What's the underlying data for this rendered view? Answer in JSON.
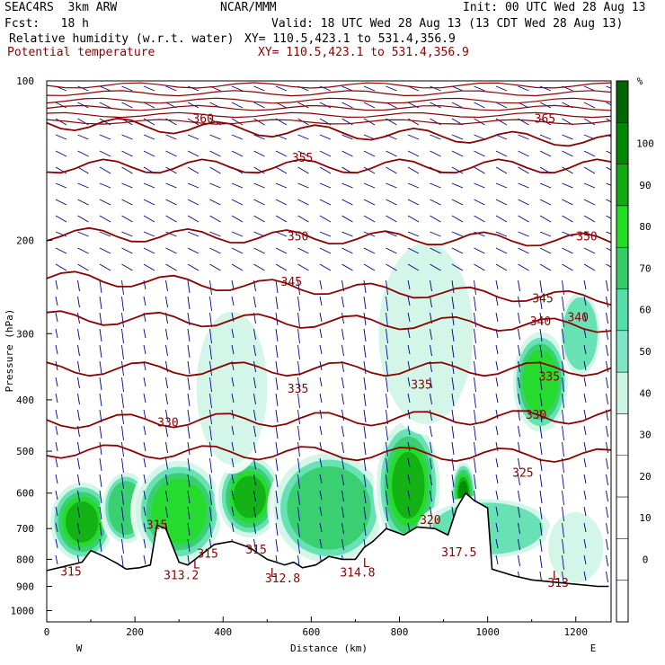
{
  "header": {
    "model": "SEAC4RS  3km ARW",
    "org": "NCAR/MMM",
    "init": "Init: 00 UTC Wed 28 Aug 13",
    "fcst": "Fcst:   18 h",
    "valid": "Valid: 18 UTC Wed 28 Aug 13 (13 CDT Wed 28 Aug 13)",
    "field1": "Relative humidity (w.r.t. water)",
    "field1_xy": "XY= 110.5,423.1 to 531.4,356.9",
    "field2": "Potential temperature",
    "field2_xy": "XY= 110.5,423.1 to 531.4,356.9"
  },
  "colors": {
    "theta": "#8b0000",
    "wind": "#00008b",
    "terrain": "#000000",
    "rh_scale": [
      "#ffffff",
      "#ffffff",
      "#ffffff",
      "#ffffff",
      "#ffffff",
      "#ccf5e4",
      "#7fe6c5",
      "#55ddaa",
      "#33cc66",
      "#22dd22",
      "#11aa11",
      "#008800",
      "#006600"
    ]
  },
  "chart_data": {
    "type": "heatmap",
    "title": "",
    "xlabel": "Distance (km)",
    "ylabel": "Pressure (hPa)",
    "xlim": [
      0,
      1280
    ],
    "ylim": [
      1050,
      100
    ],
    "y_scale": "log",
    "x_ticks": [
      "0",
      "200",
      "400",
      "600",
      "800",
      "1000",
      "1200"
    ],
    "y_ticks": [
      "100",
      "200",
      "300",
      "400",
      "500",
      "600",
      "700",
      "800",
      "900",
      "1000"
    ],
    "x_end_labels": {
      "left": "W",
      "right": "E"
    },
    "colorbar": {
      "unit": "%",
      "ticks": [
        "100",
        "90",
        "80",
        "70",
        "60",
        "50",
        "40",
        "30",
        "20",
        "10",
        "0"
      ],
      "range": [
        -10,
        110
      ]
    },
    "theta_contours": [
      {
        "label": "360",
        "p_left": 120,
        "p_right": 130
      },
      {
        "label": "355",
        "p_left": 145,
        "p_right": 145
      },
      {
        "label": "350",
        "p_left": 195,
        "p_right": 200
      },
      {
        "label": "345",
        "p_left": 235,
        "p_right": 258
      },
      {
        "label": "340",
        "p_left": 280,
        "p_right": 290
      },
      {
        "label": "335",
        "p_left": 350,
        "p_right": 350
      },
      {
        "label": "330",
        "p_left": 440,
        "p_right": 430
      },
      {
        "label": "325",
        "p_left": 500,
        "p_right": 510
      }
    ],
    "theta_labels": [
      {
        "text": "360",
        "x": 355,
        "p": 118
      },
      {
        "text": "365",
        "x": 1130,
        "p": 118
      },
      {
        "text": "355",
        "x": 580,
        "p": 140
      },
      {
        "text": "350",
        "x": 570,
        "p": 197
      },
      {
        "text": "350",
        "x": 1225,
        "p": 197
      },
      {
        "text": "345",
        "x": 555,
        "p": 240
      },
      {
        "text": "345",
        "x": 1125,
        "p": 258
      },
      {
        "text": "340",
        "x": 1120,
        "p": 285
      },
      {
        "text": "340",
        "x": 1205,
        "p": 280
      },
      {
        "text": "335",
        "x": 570,
        "p": 382
      },
      {
        "text": "335",
        "x": 850,
        "p": 375
      },
      {
        "text": "335",
        "x": 1140,
        "p": 362
      },
      {
        "text": "330",
        "x": 275,
        "p": 442
      },
      {
        "text": "330",
        "x": 1110,
        "p": 428
      },
      {
        "text": "325",
        "x": 1080,
        "p": 550
      },
      {
        "text": "320",
        "x": 870,
        "p": 675
      },
      {
        "text": "317.5",
        "x": 935,
        "p": 778
      },
      {
        "text": "315",
        "x": 250,
        "p": 690
      },
      {
        "text": "315",
        "x": 365,
        "p": 782
      },
      {
        "text": "315",
        "x": 475,
        "p": 768
      },
      {
        "text": "315",
        "x": 55,
        "p": 845
      },
      {
        "text": "312.8",
        "x": 535,
        "p": 870
      },
      {
        "text": "314.8",
        "x": 705,
        "p": 848
      },
      {
        "text": "313.2",
        "x": 305,
        "p": 858
      },
      {
        "text": "313",
        "x": 1160,
        "p": 888
      },
      {
        "text": "L",
        "x": 340,
        "p": 820
      },
      {
        "text": "L",
        "x": 515,
        "p": 850
      },
      {
        "text": "L",
        "x": 725,
        "p": 815
      },
      {
        "text": "L",
        "x": 1155,
        "p": 860
      }
    ],
    "terrain_p": [
      [
        0,
        840
      ],
      [
        40,
        825
      ],
      [
        80,
        810
      ],
      [
        100,
        770
      ],
      [
        130,
        790
      ],
      [
        160,
        815
      ],
      [
        180,
        835
      ],
      [
        210,
        830
      ],
      [
        235,
        820
      ],
      [
        250,
        690
      ],
      [
        270,
        700
      ],
      [
        300,
        810
      ],
      [
        320,
        820
      ],
      [
        345,
        790
      ],
      [
        380,
        750
      ],
      [
        420,
        740
      ],
      [
        460,
        760
      ],
      [
        500,
        800
      ],
      [
        540,
        820
      ],
      [
        560,
        810
      ],
      [
        580,
        830
      ],
      [
        610,
        820
      ],
      [
        640,
        790
      ],
      [
        670,
        800
      ],
      [
        700,
        800
      ],
      [
        720,
        760
      ],
      [
        740,
        740
      ],
      [
        770,
        700
      ],
      [
        790,
        710
      ],
      [
        810,
        720
      ],
      [
        840,
        695
      ],
      [
        880,
        700
      ],
      [
        910,
        720
      ],
      [
        930,
        640
      ],
      [
        950,
        600
      ],
      [
        970,
        620
      ],
      [
        1000,
        640
      ],
      [
        1010,
        835
      ],
      [
        1060,
        860
      ],
      [
        1100,
        875
      ],
      [
        1160,
        885
      ],
      [
        1250,
        900
      ],
      [
        1275,
        900
      ]
    ],
    "rh_blobs": [
      {
        "x": 80,
        "p": 680,
        "rx": 80,
        "rp": 130,
        "v": 85
      },
      {
        "x": 180,
        "p": 640,
        "rx": 60,
        "rp": 110,
        "v": 70
      },
      {
        "x": 300,
        "p": 650,
        "rx": 110,
        "rp": 160,
        "v": 75
      },
      {
        "x": 460,
        "p": 610,
        "rx": 80,
        "rp": 120,
        "v": 90
      },
      {
        "x": 640,
        "p": 640,
        "rx": 140,
        "rp": 170,
        "v": 70
      },
      {
        "x": 820,
        "p": 580,
        "rx": 80,
        "rp": 180,
        "v": 90
      },
      {
        "x": 945,
        "p": 600,
        "rx": 30,
        "rp": 90,
        "v": 95
      },
      {
        "x": 1000,
        "p": 700,
        "rx": 160,
        "rp": 100,
        "v": 55
      },
      {
        "x": 1120,
        "p": 370,
        "rx": 70,
        "rp": 90,
        "v": 75
      },
      {
        "x": 860,
        "p": 300,
        "rx": 120,
        "rp": 130,
        "v": 50
      },
      {
        "x": 420,
        "p": 380,
        "rx": 90,
        "rp": 140,
        "v": 50
      },
      {
        "x": 1210,
        "p": 300,
        "rx": 50,
        "rp": 60,
        "v": 55
      },
      {
        "x": 1200,
        "p": 760,
        "rx": 70,
        "rp": 130,
        "v": 45
      }
    ]
  }
}
